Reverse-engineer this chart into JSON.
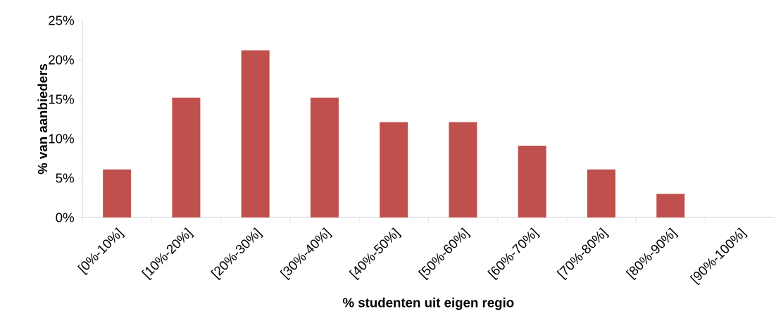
{
  "chart_data": {
    "type": "bar",
    "xlabel": "% studenten uit eigen regio",
    "ylabel": "% van aanbieders",
    "categories": [
      "[0%-10%]",
      "[10%-20%]",
      "[20%-30%]",
      "[30%-40%]",
      "[40%-50%]",
      "[50%-60%]",
      "[60%-70%]",
      "[70%-80%]",
      "[80%-90%]",
      "[90%-100%]"
    ],
    "values": [
      6.1,
      15.2,
      21.2,
      15.2,
      12.1,
      12.1,
      9.1,
      6.1,
      3.0,
      0
    ],
    "color": "#c0504d",
    "ylim": [
      0,
      25
    ],
    "yticks": [
      {
        "value": 0,
        "label": "0%"
      },
      {
        "value": 5,
        "label": "5%"
      },
      {
        "value": 10,
        "label": "10%"
      },
      {
        "value": 15,
        "label": "15%"
      },
      {
        "value": 20,
        "label": "20%"
      },
      {
        "value": 25,
        "label": "25%"
      }
    ]
  }
}
